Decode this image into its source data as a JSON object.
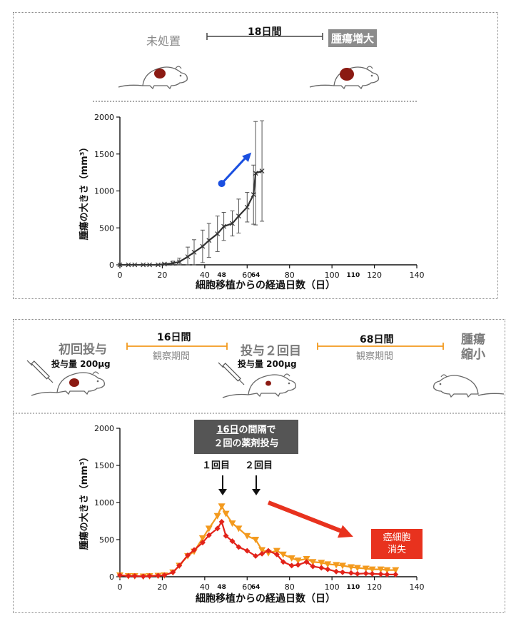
{
  "top": {
    "untreated_label": "未処置",
    "period_label": "18日間",
    "tumor_grows_label": "腫瘍増大"
  },
  "bottom": {
    "first_dose_label": "初回投与",
    "dose_amount_1": "投与量 200μg",
    "period1_label": "16日間",
    "period1_sub": "観察期間",
    "second_dose_label": "投与２回目",
    "dose_amount_2": "投与量 200μg",
    "period2_label": "68日間",
    "period2_sub": "観察期間",
    "tumor_shrink_label": "腫瘍\n縮小",
    "note_underlined": "16日",
    "note_rest_line1": "の間隔で",
    "note_line2": "２回の薬剤投与",
    "arrow1_label": "１回目",
    "arrow2_label": "２回目",
    "cancer_gone_line1": "癌細胞",
    "cancer_gone_line2": "消失"
  },
  "colors": {
    "untreated_line": "#333333",
    "blue_arrow": "#1a4fe0",
    "series_orange": "#f39a1e",
    "series_red": "#e2231a",
    "red_arrow": "#e8321e",
    "tumor": "#8b1a12"
  },
  "chart_data": [
    {
      "type": "line",
      "xlabel": "細胞移植からの経過日数（日）",
      "ylabel": "腫瘍の大きさ（mm³）",
      "xlim": [
        0,
        140
      ],
      "ylim": [
        0,
        2000
      ],
      "xticks": [
        0,
        20,
        40,
        60,
        80,
        100,
        120,
        140
      ],
      "extra_xticks": [
        48,
        64,
        110
      ],
      "yticks": [
        0,
        500,
        1000,
        1500,
        2000
      ],
      "series": [
        {
          "x": [
            0,
            4,
            7,
            11,
            14,
            18,
            21,
            25,
            28,
            32,
            35,
            39,
            42,
            46,
            49,
            53,
            56,
            60,
            63,
            64,
            67
          ],
          "y": [
            0,
            0,
            0,
            0,
            0,
            0,
            10,
            20,
            40,
            110,
            170,
            250,
            330,
            420,
            520,
            560,
            660,
            780,
            950,
            1240,
            1270
          ],
          "err": [
            0,
            0,
            0,
            0,
            0,
            0,
            10,
            30,
            50,
            130,
            170,
            220,
            230,
            240,
            190,
            170,
            230,
            200,
            400,
            700,
            680
          ]
        }
      ],
      "annotation_arrow": {
        "from": [
          48,
          1100
        ],
        "to": [
          62,
          1520
        ]
      }
    },
    {
      "type": "line",
      "xlabel": "細胞移植からの経過日数（日）",
      "ylabel": "腫瘍の大きさ（mm³）",
      "xlim": [
        0,
        140
      ],
      "ylim": [
        0,
        2000
      ],
      "xticks": [
        0,
        20,
        40,
        60,
        80,
        100,
        120,
        140
      ],
      "extra_xticks": [
        48,
        64,
        110
      ],
      "yticks": [
        0,
        500,
        1000,
        1500,
        2000
      ],
      "series": [
        {
          "color": "orange",
          "marker": "triangle-down",
          "x": [
            0,
            4,
            7,
            11,
            14,
            18,
            21,
            25,
            28,
            32,
            35,
            39,
            42,
            46,
            48,
            50,
            53,
            56,
            60,
            64,
            67,
            70,
            74,
            77,
            81,
            84,
            88,
            91,
            95,
            98,
            102,
            105,
            109,
            112,
            116,
            119,
            123,
            126,
            130
          ],
          "y": [
            20,
            10,
            10,
            5,
            10,
            15,
            20,
            60,
            150,
            280,
            340,
            520,
            650,
            820,
            950,
            850,
            720,
            650,
            550,
            500,
            360,
            320,
            350,
            300,
            250,
            220,
            240,
            200,
            190,
            170,
            160,
            150,
            130,
            120,
            110,
            100,
            100,
            90,
            90
          ]
        },
        {
          "color": "red",
          "marker": "diamond",
          "x": [
            0,
            4,
            7,
            11,
            14,
            18,
            21,
            25,
            28,
            32,
            35,
            39,
            42,
            46,
            48,
            50,
            53,
            56,
            60,
            64,
            67,
            70,
            74,
            77,
            81,
            84,
            88,
            91,
            95,
            98,
            102,
            105,
            109,
            112,
            116,
            119,
            123,
            126,
            130
          ],
          "y": [
            20,
            10,
            10,
            5,
            10,
            15,
            20,
            60,
            150,
            290,
            360,
            460,
            560,
            650,
            740,
            550,
            480,
            400,
            350,
            280,
            310,
            350,
            300,
            200,
            150,
            160,
            200,
            140,
            120,
            100,
            70,
            60,
            50,
            40,
            45,
            40,
            35,
            30,
            30
          ]
        }
      ],
      "annotation_arrow": {
        "from": [
          70,
          1000
        ],
        "to": [
          110,
          540
        ]
      }
    }
  ],
  "charts_text": {
    "xlabel": "細胞移植からの経過日数（日）",
    "ylabel": "腫瘍の大きさ（mm³）",
    "xtick_labels": [
      "0",
      "20",
      "40",
      "60",
      "80",
      "100",
      "120",
      "140"
    ],
    "extra_tick_labels": [
      "48",
      "64",
      "110"
    ],
    "ytick_labels": [
      "0",
      "500",
      "1000",
      "1500",
      "2000"
    ]
  }
}
